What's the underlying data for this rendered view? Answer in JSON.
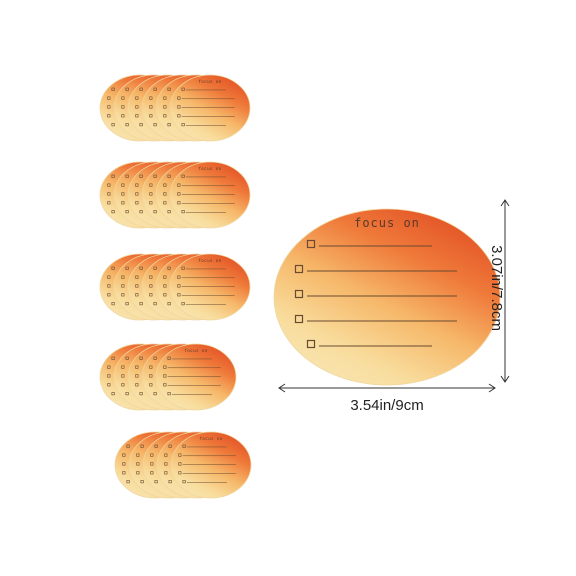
{
  "note_label": "focus on",
  "dimensions": {
    "width": "3.54in/9cm",
    "height": "3.07in/7.8cm"
  }
}
